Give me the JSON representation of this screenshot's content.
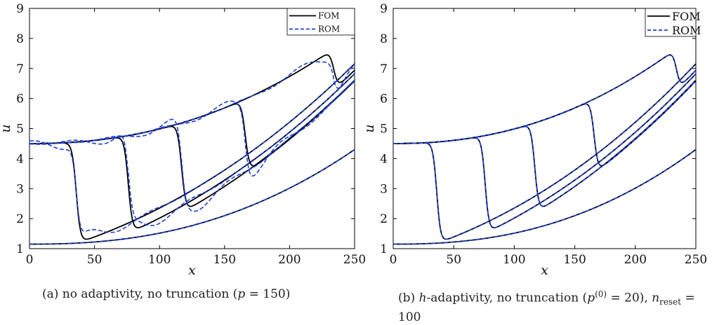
{
  "chart_data": [
    {
      "type": "line",
      "caption": "(a) no adaptivity, no truncation (p = 150)",
      "xlabel": "x",
      "ylabel": "u",
      "xlim": [
        0,
        250
      ],
      "ylim": [
        1,
        9
      ],
      "xticks": [
        0,
        50,
        100,
        150,
        200,
        250
      ],
      "yticks": [
        1,
        2,
        3,
        4,
        5,
        6,
        7,
        8,
        9
      ],
      "grid": false,
      "legend": {
        "position": "top-right",
        "entries": [
          "FOM",
          "ROM"
        ]
      },
      "series": [
        {
          "name": "FOM",
          "color": "#000000",
          "dash": "solid",
          "curves": [
            {
              "shock": 36,
              "low": 1.17
            },
            {
              "shock": 76,
              "low": 1.52
            },
            {
              "shock": 117,
              "low": 2.2
            },
            {
              "shock": 166,
              "low": 3.52
            },
            {
              "shock": 234,
              "low": 6.28
            },
            {
              "shock": 300,
              "low": 0
            }
          ]
        },
        {
          "name": "ROM",
          "color": "#1f3fd6",
          "dash": "dashed",
          "oscillation": 0.35
        }
      ]
    },
    {
      "type": "line",
      "caption": "(b) h-adaptivity, no truncation (p(0) = 20), nreset = 100",
      "xlabel": "x",
      "ylabel": "u",
      "xlim": [
        0,
        250
      ],
      "ylim": [
        1,
        9
      ],
      "xticks": [
        0,
        50,
        100,
        150,
        200,
        250
      ],
      "yticks": [
        1,
        2,
        3,
        4,
        5,
        6,
        7,
        8,
        9
      ],
      "grid": false,
      "legend": {
        "position": "top-right",
        "entries": [
          "FOM",
          "ROM"
        ]
      },
      "series": [
        {
          "name": "FOM",
          "color": "#000000",
          "dash": "solid",
          "curves": [
            {
              "shock": 36,
              "low": 1.17
            },
            {
              "shock": 76,
              "low": 1.52
            },
            {
              "shock": 117,
              "low": 2.2
            },
            {
              "shock": 166,
              "low": 3.52
            },
            {
              "shock": 234,
              "low": 6.28
            },
            {
              "shock": 300,
              "low": 0
            }
          ]
        },
        {
          "name": "ROM",
          "color": "#1f3fd6",
          "dash": "dashed",
          "oscillation": 0.0
        }
      ]
    }
  ]
}
